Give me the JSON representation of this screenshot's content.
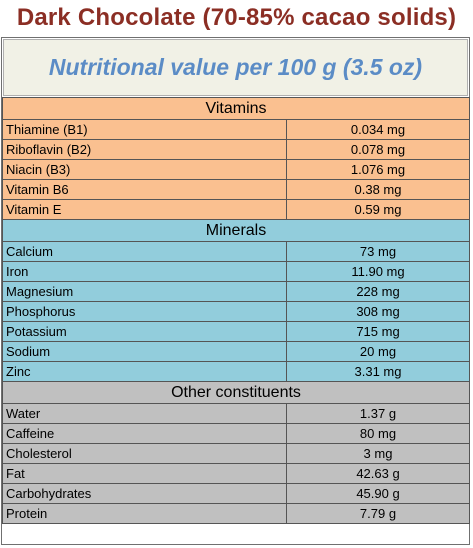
{
  "title": "Dark Chocolate (70-85% cacao solids)",
  "subtitle": "Nutritional value per 100 g (3.5 oz)",
  "sections": [
    {
      "name": "Vitamins",
      "color": "#fac090",
      "rows": [
        {
          "label": "Thiamine (B1)",
          "value": "0.034 mg"
        },
        {
          "label": "Riboflavin (B2)",
          "value": "0.078 mg"
        },
        {
          "label": "Niacin (B3)",
          "value": "1.076 mg"
        },
        {
          "label": "Vitamin B6",
          "value": "0.38 mg"
        },
        {
          "label": "Vitamin E",
          "value": "0.59 mg"
        }
      ]
    },
    {
      "name": "Minerals",
      "color": "#92cddc",
      "rows": [
        {
          "label": "Calcium",
          "value": "73 mg"
        },
        {
          "label": "Iron",
          "value": "11.90 mg"
        },
        {
          "label": "Magnesium",
          "value": "228 mg"
        },
        {
          "label": "Phosphorus",
          "value": "308 mg"
        },
        {
          "label": "Potassium",
          "value": "715 mg"
        },
        {
          "label": "Sodium",
          "value": "20 mg"
        },
        {
          "label": "Zinc",
          "value": "3.31 mg"
        }
      ]
    },
    {
      "name": "Other constituents",
      "color": "#c0c0c0",
      "rows": [
        {
          "label": "Water",
          "value": "1.37 g"
        },
        {
          "label": "Caffeine",
          "value": "80 mg"
        },
        {
          "label": "Cholesterol",
          "value": "3 mg"
        },
        {
          "label": "Fat",
          "value": "42.63 g"
        },
        {
          "label": "Carbohydrates",
          "value": "45.90 g"
        },
        {
          "label": "Protein",
          "value": "7.79 g"
        }
      ]
    }
  ]
}
